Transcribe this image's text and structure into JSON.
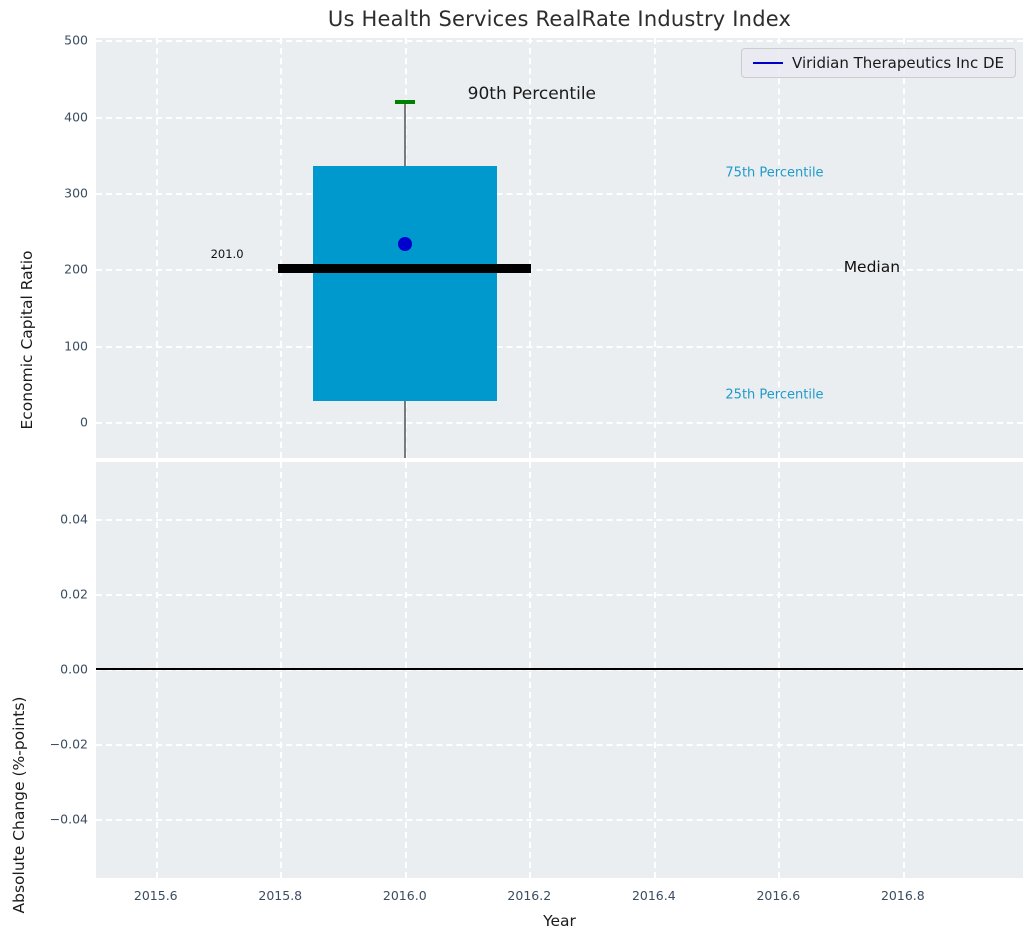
{
  "title": "Us Health Services RealRate Industry Index",
  "colors": {
    "plot_background": "#EAEEF0",
    "grid": "#FFFFFF",
    "box_fill": "#0099CD",
    "p90_cap": "#008000",
    "median_line": "#000000",
    "company_marker": "#0000CC",
    "percentile_text": "#1F9ACB",
    "tick_text": "#3B4D61"
  },
  "legend": {
    "position": "upper right",
    "entries": [
      {
        "label": "Viridian Therapeutics Inc DE",
        "color": "#0000CC"
      }
    ]
  },
  "chart_data": [
    {
      "type": "bar",
      "subplot": "top",
      "title": "Us Health Services RealRate Industry Index",
      "ylabel": "Economic Capital Ratio",
      "yticks": [
        0,
        100,
        200,
        300,
        400,
        500
      ],
      "ylim": [
        -47,
        503
      ],
      "xlim": [
        2015.504,
        2016.993
      ],
      "xticks": [
        2015.6,
        2015.8,
        2016.0,
        2016.2,
        2016.4,
        2016.6,
        2016.8
      ],
      "grid": true,
      "box": {
        "x": 2016.0,
        "box_width_years": 0.295,
        "p25": 27,
        "p75": 335,
        "median": 201.0,
        "median_width_years": 0.406,
        "p90": 419,
        "cap_width_years": 0.033,
        "whisker_extends_below_axis": true
      },
      "median_value_label": "201.0",
      "series": [
        {
          "name": "Viridian Therapeutics Inc DE",
          "marker": "circle",
          "points": [
            {
              "x": 2016.0,
              "y": 233
            }
          ]
        }
      ],
      "annotations": [
        {
          "text": "90th Percentile",
          "x": 2016.101,
          "y": 430,
          "align": "left",
          "size": 17,
          "color": "#1a1a1a"
        },
        {
          "text": "75th Percentile",
          "x": 2016.515,
          "y": 326,
          "align": "left",
          "size": 13,
          "color": "#1F9ACB"
        },
        {
          "text": "Median",
          "x": 2016.705,
          "y": 203,
          "align": "left",
          "size": 15.5,
          "color": "#111111"
        },
        {
          "text": "25th Percentile",
          "x": 2016.515,
          "y": 36,
          "align": "left",
          "size": 13,
          "color": "#1F9ACB"
        },
        {
          "text": "201.0",
          "x": 2015.741,
          "y": 220,
          "align": "right",
          "size": 11.5,
          "color": "#111111"
        }
      ]
    },
    {
      "type": "line",
      "subplot": "bottom",
      "ylabel": "Absolute Change (%-points)",
      "xlabel": "Year",
      "yticks": [
        0.04,
        0.02,
        0.0,
        -0.02,
        -0.04
      ],
      "ytick_labels": [
        "0.04",
        "0.02",
        "0.00",
        "−0.02",
        "−0.04"
      ],
      "ylim": [
        -0.0556,
        0.0552
      ],
      "xlim": [
        2015.504,
        2016.993
      ],
      "xticks": [
        2015.6,
        2015.8,
        2016.0,
        2016.2,
        2016.4,
        2016.6,
        2016.8
      ],
      "grid": true,
      "zero_line": 0.0,
      "series": []
    }
  ]
}
